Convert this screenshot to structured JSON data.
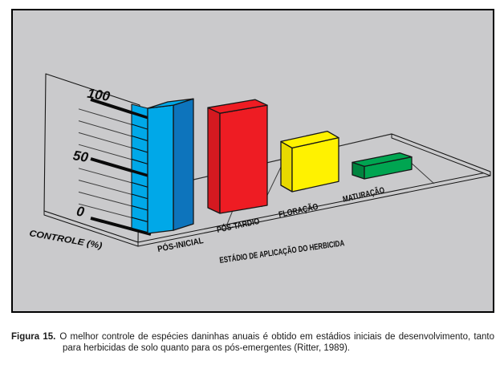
{
  "figure": {
    "caption_label": "Figura 15.",
    "caption_text": "O melhor controle de espécies daninhas anuais é obtido em estádios iniciais de desenvolvimento, tanto para herbicidas de solo quanto para os pós-emergentes (Ritter, 1989)."
  },
  "chart_data": {
    "type": "bar",
    "style": "3d-perspective",
    "title": "",
    "xlabel": "ESTÁDIO DE APLICAÇÃO DO HERBICIDA",
    "ylabel": "CONTROLE (%)",
    "ylim": [
      0,
      100
    ],
    "yticks": [
      0,
      50,
      100
    ],
    "ytick_labels": [
      "0",
      "50",
      "100"
    ],
    "minor_grid_step": 10,
    "grid": true,
    "legend": "none",
    "categories": [
      "PÓS-INICIAL",
      "PÓS-TARDIO",
      "FLORAÇÃO",
      "MATURAÇÃO"
    ],
    "values": [
      100,
      80,
      35,
      10
    ],
    "bars": [
      {
        "label": "PÓS-INICIAL",
        "value": 100,
        "color_front": "#00a8e8",
        "color_side": "#0d74bc"
      },
      {
        "label": "PÓS-TARDIO",
        "value": 80,
        "color_front": "#ee1c23",
        "color_side": "#d41920"
      },
      {
        "label": "FLORAÇÃO",
        "value": 35,
        "color_front": "#fff200",
        "color_side": "#e8d900"
      },
      {
        "label": "MATURAÇÃO",
        "value": 10,
        "color_front": "#00a551",
        "color_side": "#00843f"
      }
    ]
  },
  "colors": {
    "panel_bg": "#cacacc",
    "panel_border": "#000000",
    "line": "#1c1c1c",
    "text": "#111111"
  }
}
